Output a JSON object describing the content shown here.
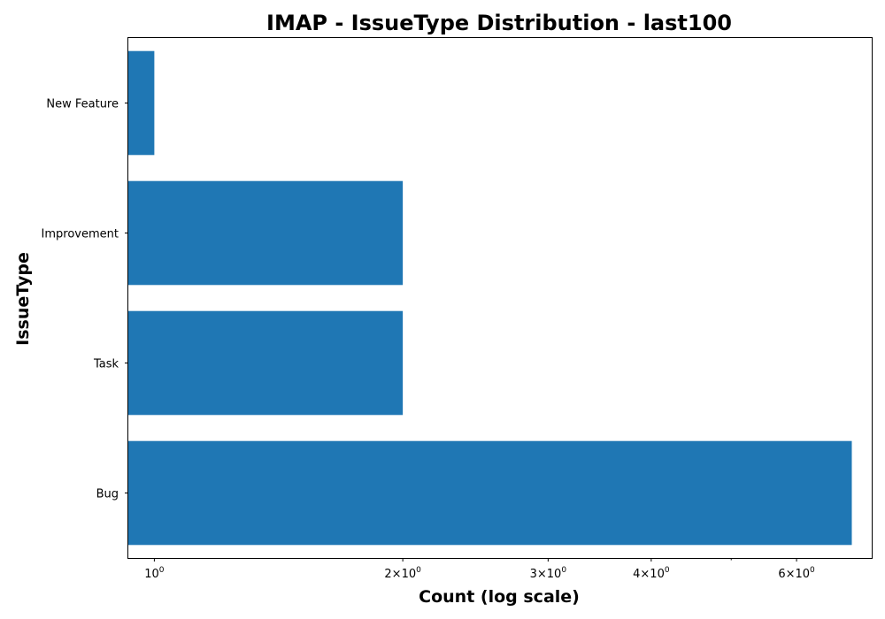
{
  "chart_data": {
    "type": "bar",
    "orientation": "horizontal",
    "title": "IMAP - IssueType Distribution - last100",
    "xlabel": "Count (log scale)",
    "ylabel": "IssueType",
    "categories": [
      "Bug",
      "Task",
      "Improvement",
      "New Feature"
    ],
    "values": [
      7,
      2,
      2,
      1
    ],
    "x_scale": "log",
    "xlim": [
      0.93,
      7.4
    ],
    "x_ticks": [
      {
        "value": 1,
        "base": "10",
        "exp": "0"
      },
      {
        "value": 2,
        "coef": "2",
        "base": "10",
        "exp": "0"
      },
      {
        "value": 3,
        "coef": "3",
        "base": "10",
        "exp": "0"
      },
      {
        "value": 4,
        "coef": "4",
        "base": "10",
        "exp": "0"
      },
      {
        "value": 6,
        "coef": "6",
        "base": "10",
        "exp": "0"
      }
    ],
    "x_minor_ticks": [
      5
    ],
    "bar_color": "#1f77b4",
    "grid": false,
    "legend": "none"
  }
}
